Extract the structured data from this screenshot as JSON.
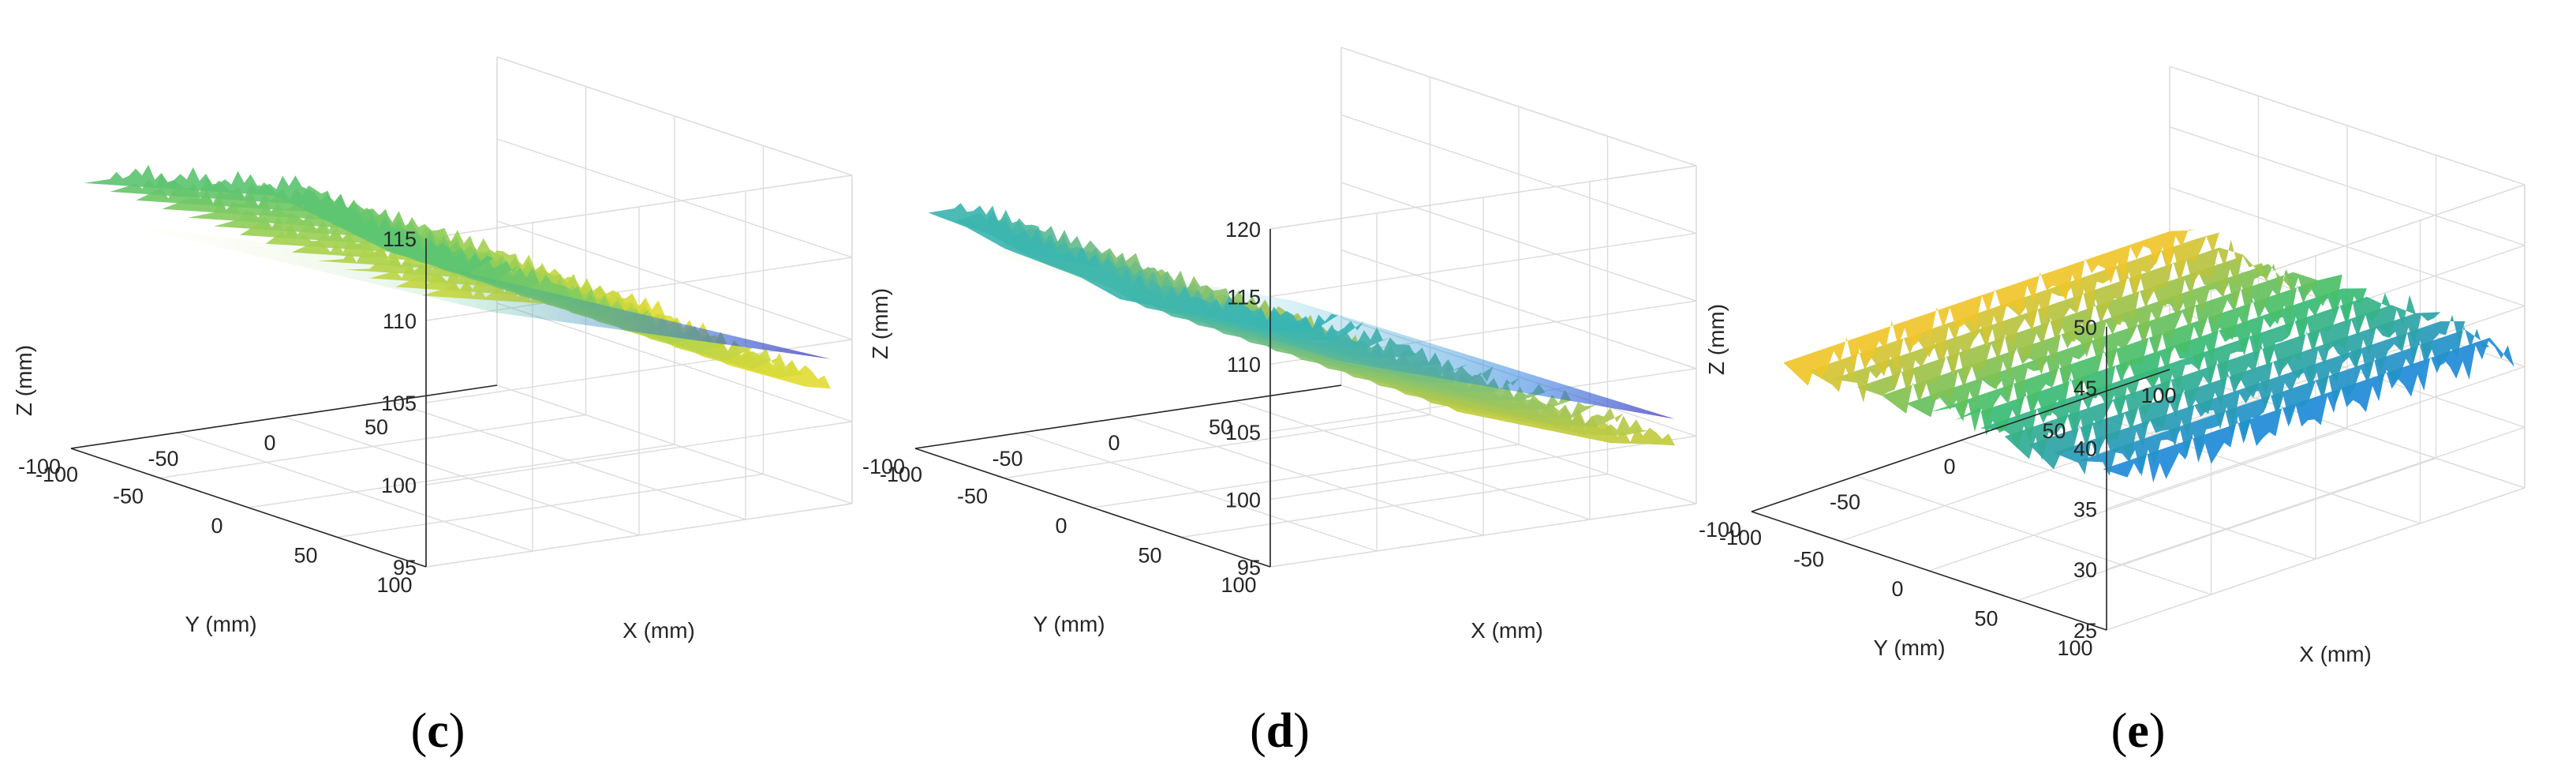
{
  "chart_data": [
    {
      "type": "surface",
      "panel_label": "(c)",
      "xlabel": "X (mm)",
      "ylabel": "Y (mm)",
      "zlabel": "Z (mm)",
      "xlim": [
        -100,
        100
      ],
      "ylim": [
        -100,
        100
      ],
      "zlim": [
        95,
        115
      ],
      "xticks": [
        -100,
        -50,
        0,
        50
      ],
      "yticks": [
        100,
        50,
        0,
        -50,
        -100
      ],
      "zticks": [
        95,
        100,
        105,
        110,
        115
      ],
      "grid": true,
      "colormap": "parula",
      "surface_profile": [
        112,
        111.5,
        111,
        110.5,
        110,
        109.5,
        108,
        106.5,
        105,
        104,
        103
      ],
      "surface_extent": {
        "x": [
          -90,
          90
        ],
        "y": [
          -90,
          100
        ]
      },
      "colors": {
        "high": "#f9e02b",
        "mid": "#3fbf7f",
        "low": "#2b6fdc",
        "min": "#3a2cb4"
      }
    },
    {
      "type": "surface",
      "panel_label": "(d)",
      "xlabel": "X (mm)",
      "ylabel": "Y (mm)",
      "zlabel": "Z (mm)",
      "xlim": [
        -100,
        100
      ],
      "ylim": [
        -100,
        100
      ],
      "zlim": [
        95,
        120
      ],
      "xticks": [
        -100,
        -50,
        0,
        50
      ],
      "yticks": [
        100,
        50,
        0,
        -50,
        -100
      ],
      "zticks": [
        95,
        100,
        105,
        110,
        115,
        120
      ],
      "grid": true,
      "colormap": "parula",
      "surface_profile": [
        113.5,
        112,
        110,
        108.5,
        107,
        105,
        104,
        103,
        102,
        101,
        100.5
      ],
      "surface_extent": {
        "x": [
          -90,
          90
        ],
        "y": [
          -90,
          100
        ]
      },
      "colors": {
        "high": "#d9d02a",
        "mid": "#1fb0c9",
        "low": "#2a7de0",
        "min": "#4130c0"
      }
    },
    {
      "type": "surface",
      "panel_label": "(e)",
      "xlabel": "X (mm)",
      "ylabel": "Y (mm)",
      "zlabel": "Z (mm)",
      "xlim": [
        -100,
        100
      ],
      "ylim": [
        -100,
        100
      ],
      "zlim": [
        25,
        50
      ],
      "xticks": [
        -100,
        -50,
        0,
        50,
        100
      ],
      "yticks": [
        100,
        50,
        0,
        -50,
        -100
      ],
      "zticks": [
        25,
        30,
        35,
        40,
        45,
        50
      ],
      "grid": true,
      "colormap": "parula",
      "surface_profile": [
        37,
        37,
        37,
        37,
        37,
        37,
        37,
        37,
        37,
        37,
        37
      ],
      "surface_extent": {
        "x": [
          -90,
          95
        ],
        "y": [
          -80,
          100
        ]
      },
      "colors": {
        "high": "#f0c52a",
        "mid": "#3cbf6d",
        "low": "#1f8bd8",
        "min": "#2c5be0"
      }
    }
  ]
}
